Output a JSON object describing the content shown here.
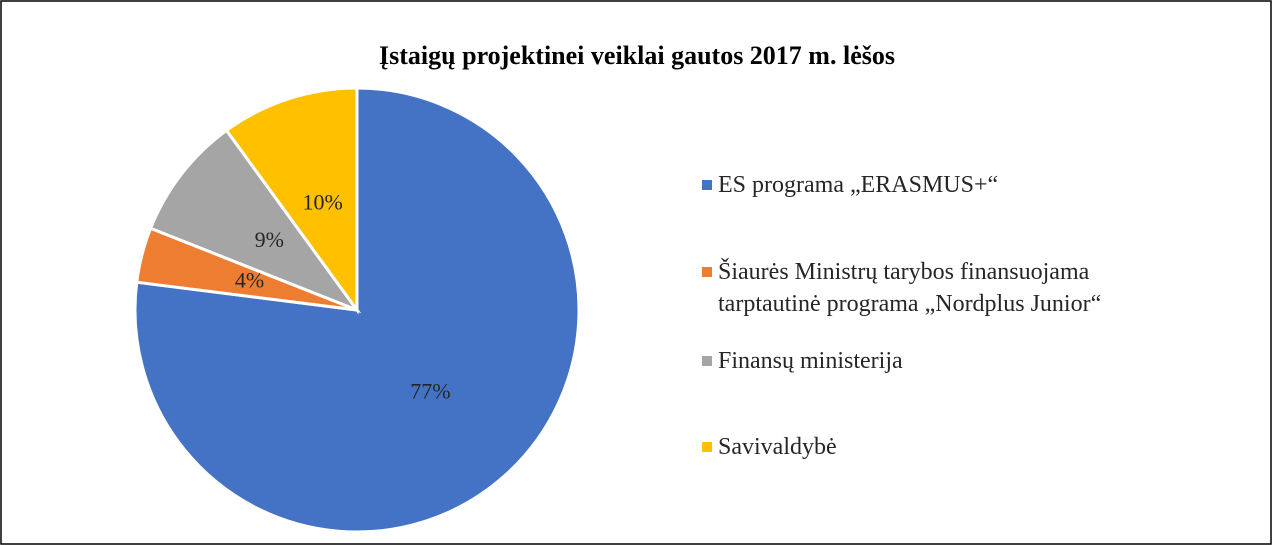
{
  "chart_data": {
    "type": "pie",
    "title": "Įstaigų projektinei veiklai gautos 2017 m. lėšos",
    "categories": [
      "ES programa „ERASMUS+“",
      "Šiaurės Ministrų tarybos finansuojama tarptautinė programa „Nordplus Junior“",
      "Finansų ministerija",
      "Savivaldybė"
    ],
    "values": [
      77,
      4,
      9,
      10
    ],
    "value_labels": [
      "77%",
      "4%",
      "9%",
      "10%"
    ],
    "colors": [
      "#4472c4",
      "#ed7d31",
      "#a5a5a5",
      "#ffc000"
    ],
    "legend": "right"
  }
}
